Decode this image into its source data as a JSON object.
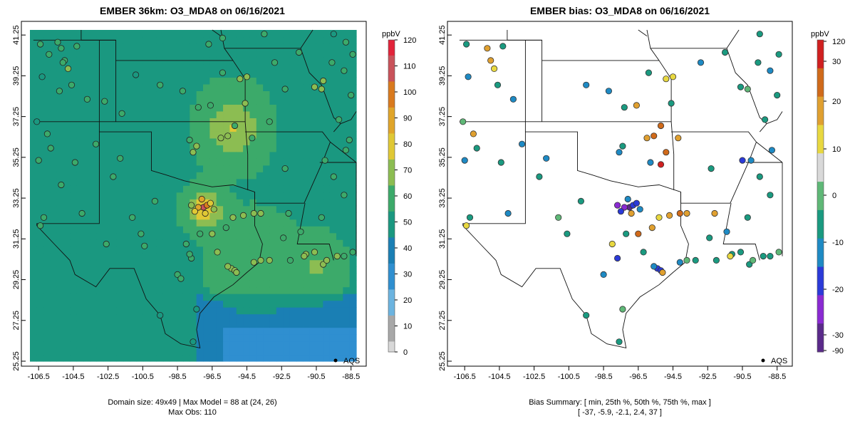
{
  "left_panel": {
    "title": "EMBER 36km: O3_MDA8 on 06/16/2021",
    "colorbar_unit": "ppbV",
    "colorbar_ticks": [
      "120",
      "110",
      "100",
      "90",
      "80",
      "70",
      "60",
      "50",
      "40",
      "30",
      "20",
      "10",
      "0"
    ],
    "colorbar_scale": {
      "min": 0,
      "max": 120
    },
    "legend_label": "AQS",
    "footer_line1": "Domain size: 49x49 | Max Model = 88 at (24, 26)",
    "footer_line2": "Max Obs: 110"
  },
  "right_panel": {
    "title": "EMBER bias: O3_MDA8 on 06/16/2021",
    "colorbar_unit": "ppbV",
    "colorbar_ticks": [
      "120",
      "30",
      "20",
      "10",
      "0",
      "-10",
      "-20",
      "-30",
      "-90"
    ],
    "legend_label": "AQS",
    "footer_line1": "Bias Summary: [ min, 25th %, 50th %, 75th %, max ]",
    "footer_line2": "[ -37,   -5.9,   -2.1,   2.4,   37 ]"
  },
  "x_ticks": [
    "-106.5",
    "-104.5",
    "-102.5",
    "-100.5",
    "-98.5",
    "-96.5",
    "-94.5",
    "-92.5",
    "-90.5",
    "-88.5"
  ],
  "y_ticks": [
    "41.25",
    "39.25",
    "37.25",
    "35.25",
    "33.25",
    "31.25",
    "29.25",
    "27.25",
    "25.25"
  ],
  "map_extent": {
    "lon_min": -107,
    "lon_max": -88.2,
    "lat_min": 25.25,
    "lat_max": 41.5
  },
  "colors": {
    "ozone_ramp": [
      "#d8d8d8",
      "#a8a8a8",
      "#6cb4e0",
      "#2f8fd0",
      "#1a7fb4",
      "#1a9880",
      "#3caa6a",
      "#8cbd52",
      "#e0c835",
      "#e0a52a",
      "#d97a1e",
      "#c9525a",
      "#e2233a"
    ],
    "bias_ramp": [
      "#5a2a8a",
      "#8a2ad2",
      "#2b3ad8",
      "#1e8ac4",
      "#1a9a80",
      "#5fb877",
      "#d9d9d9",
      "#e8d840",
      "#e0a030",
      "#d06a1a",
      "#d02020"
    ]
  }
}
